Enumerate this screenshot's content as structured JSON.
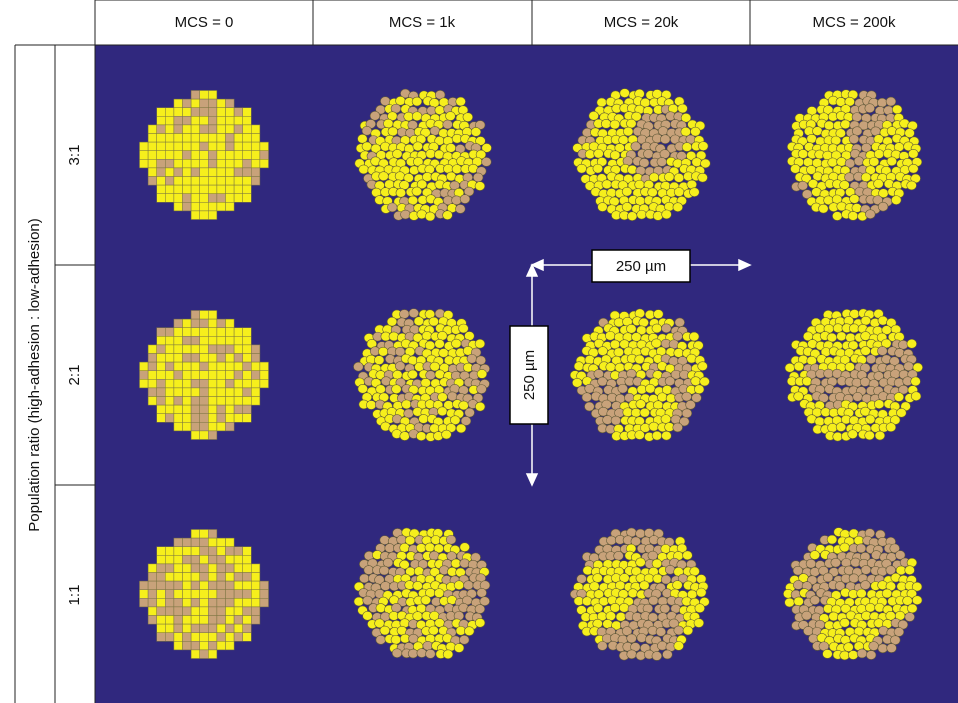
{
  "header": {
    "columns": [
      "MCS = 0",
      "MCS = 1k",
      "MCS = 20k",
      "MCS = 200k"
    ]
  },
  "axis_label": "Population ratio (high-adhesion : low-adhesion)",
  "rows": [
    "3:1",
    "2:1",
    "1:1"
  ],
  "scale_bars": {
    "horizontal": "250 µm",
    "vertical": "250 µm"
  }
}
